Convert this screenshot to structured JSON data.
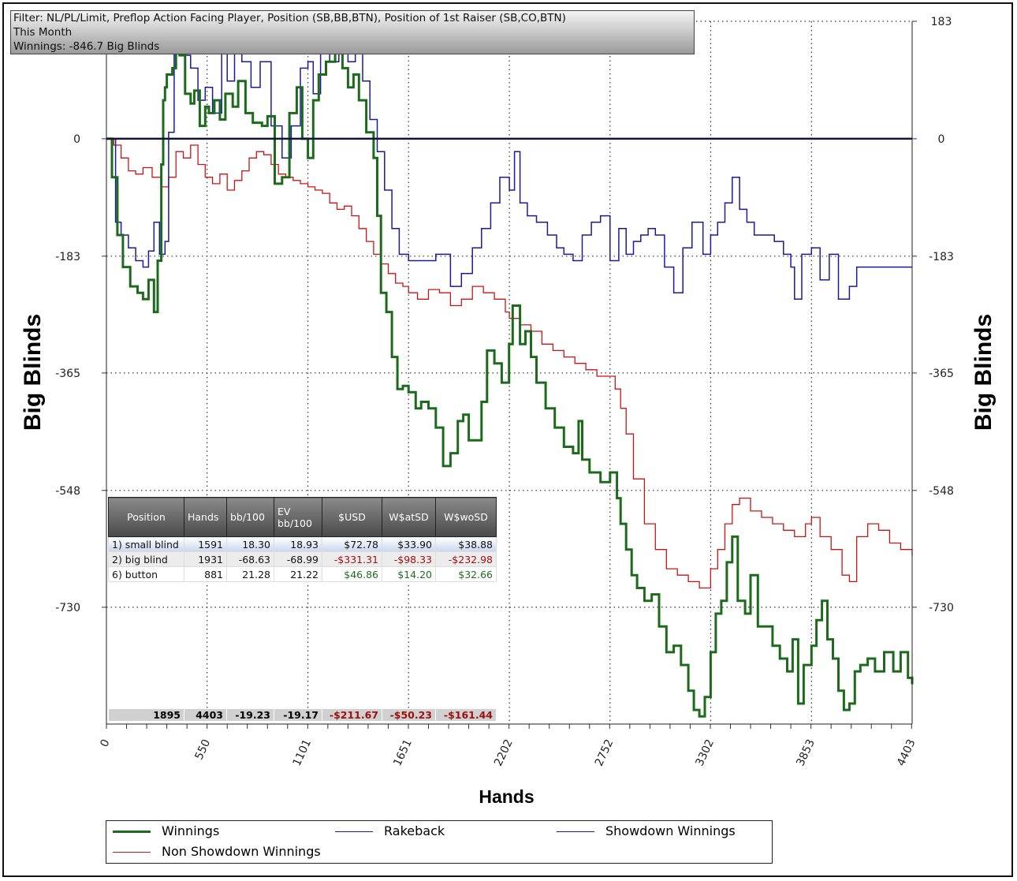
{
  "filter": {
    "line1": "Filter: NL/PL/Limit, Preflop Action Facing Player, Position (SB,BB,BTN), Position of 1st Raiser (SB,CO,BTN)",
    "line2": "This Month",
    "line3": "Winnings: -846.7 Big Blinds"
  },
  "chart_data": {
    "type": "line",
    "xlabel": "Hands",
    "ylabel": "Big Blinds",
    "ylabel_right": "Big Blinds",
    "xlim": [
      0,
      4403
    ],
    "ylim": [
      -912,
      183
    ],
    "x_ticks": [
      "0",
      "550",
      "1101",
      "1651",
      "2202",
      "2752",
      "3302",
      "3853",
      "4403"
    ],
    "x_tick_values": [
      0,
      550,
      1101,
      1651,
      2202,
      2752,
      3302,
      3853,
      4403
    ],
    "y_ticks": [
      "183",
      "0",
      "-183",
      "-365",
      "-548",
      "-730"
    ],
    "y_tick_values": [
      183,
      0,
      -183,
      -365,
      -548,
      -730
    ],
    "grid": true,
    "legend_position": "bottom",
    "series": [
      {
        "name": "Winnings",
        "color": "#1b6b1b",
        "x": [
          0,
          30,
          60,
          90,
          130,
          170,
          200,
          230,
          260,
          280,
          300,
          310,
          320,
          330,
          360,
          380,
          400,
          430,
          460,
          480,
          510,
          540,
          560,
          590,
          620,
          650,
          690,
          720,
          760,
          800,
          850,
          880,
          920,
          960,
          1000,
          1040,
          1070,
          1101,
          1130,
          1160,
          1200,
          1250,
          1290,
          1320,
          1350,
          1380,
          1420,
          1460,
          1480,
          1500,
          1530,
          1560,
          1590,
          1620,
          1651,
          1690,
          1720,
          1760,
          1800,
          1840,
          1880,
          1920,
          1950,
          1980,
          2010,
          2050,
          2080,
          2120,
          2160,
          2200,
          2220,
          2260,
          2290,
          2320,
          2350,
          2400,
          2450,
          2500,
          2550,
          2580,
          2600,
          2640,
          2700,
          2752,
          2790,
          2810,
          2840,
          2870,
          2900,
          2940,
          2980,
          3020,
          3060,
          3100,
          3140,
          3180,
          3210,
          3240,
          3270,
          3302,
          3330,
          3360,
          3390,
          3420,
          3450,
          3490,
          3520,
          3560,
          3600,
          3640,
          3680,
          3720,
          3750,
          3780,
          3810,
          3853,
          3880,
          3910,
          3940,
          3970,
          4000,
          4030,
          4060,
          4090,
          4120,
          4160,
          4200,
          4250,
          4300,
          4340,
          4380,
          4403
        ],
        "y": [
          0,
          -60,
          -150,
          -200,
          -230,
          -240,
          -250,
          -220,
          -270,
          -190,
          -40,
          60,
          80,
          100,
          110,
          140,
          130,
          70,
          55,
          75,
          20,
          50,
          40,
          60,
          30,
          70,
          50,
          90,
          40,
          25,
          20,
          35,
          -70,
          -60,
          40,
          80,
          0,
          -30,
          60,
          100,
          120,
          140,
          110,
          80,
          100,
          60,
          10,
          -30,
          -120,
          -240,
          -270,
          -340,
          -390,
          -385,
          -395,
          -420,
          -410,
          -420,
          -450,
          -510,
          -490,
          -440,
          -430,
          -470,
          -470,
          -410,
          -330,
          -350,
          -380,
          -320,
          -260,
          -320,
          -300,
          -340,
          -380,
          -420,
          -450,
          -480,
          -490,
          -440,
          -500,
          -520,
          -535,
          -520,
          -560,
          -600,
          -640,
          -680,
          -700,
          -720,
          -710,
          -760,
          -800,
          -790,
          -820,
          -860,
          -890,
          -900,
          -870,
          -800,
          -740,
          -720,
          -660,
          -620,
          -720,
          -740,
          -680,
          -760,
          -760,
          -790,
          -810,
          -830,
          -780,
          -880,
          -820,
          -790,
          -750,
          -720,
          -780,
          -810,
          -860,
          -890,
          -880,
          -830,
          -820,
          -810,
          -830,
          -800,
          -830,
          -800,
          -840,
          -850
        ]
      },
      {
        "name": "Rakeback",
        "color": "#1a1a9c",
        "x": [
          0,
          4403
        ],
        "y": [
          0,
          0
        ]
      },
      {
        "name": "Showdown Winnings",
        "color": "#1a1a9c",
        "x": [
          0,
          50,
          80,
          120,
          160,
          200,
          230,
          260,
          290,
          320,
          340,
          370,
          400,
          430,
          460,
          500,
          540,
          580,
          630,
          660,
          700,
          740,
          790,
          840,
          900,
          960,
          1010,
          1060,
          1101,
          1130,
          1170,
          1220,
          1270,
          1320,
          1360,
          1400,
          1440,
          1480,
          1520,
          1560,
          1600,
          1651,
          1720,
          1800,
          1880,
          1940,
          2000,
          2050,
          2100,
          2150,
          2202,
          2230,
          2260,
          2300,
          2350,
          2410,
          2460,
          2500,
          2550,
          2600,
          2650,
          2700,
          2752,
          2800,
          2840,
          2880,
          2920,
          2960,
          3000,
          3050,
          3100,
          3150,
          3200,
          3260,
          3302,
          3340,
          3380,
          3420,
          3460,
          3500,
          3540,
          3600,
          3650,
          3700,
          3740,
          3760,
          3800,
          3853,
          3900,
          3950,
          4000,
          4060,
          4100,
          4160,
          4220,
          4300,
          4360,
          4403
        ],
        "y": [
          0,
          -130,
          -150,
          -170,
          -190,
          -200,
          -175,
          -130,
          -180,
          -160,
          10,
          160,
          150,
          130,
          110,
          60,
          80,
          40,
          140,
          90,
          140,
          120,
          80,
          120,
          20,
          -30,
          20,
          110,
          120,
          70,
          150,
          120,
          180,
          120,
          160,
          90,
          30,
          -20,
          -80,
          -140,
          -180,
          -190,
          -190,
          -180,
          -230,
          -210,
          -170,
          -140,
          -100,
          -60,
          -80,
          -20,
          -100,
          -120,
          -130,
          -150,
          -170,
          -180,
          -190,
          -150,
          -130,
          -120,
          -190,
          -140,
          -180,
          -160,
          -150,
          -140,
          -150,
          -200,
          -240,
          -170,
          -130,
          -180,
          -150,
          -130,
          -100,
          -60,
          -110,
          -130,
          -150,
          -150,
          -160,
          -180,
          -200,
          -250,
          -180,
          -170,
          -220,
          -180,
          -250,
          -230,
          -200,
          -200,
          -200,
          -200,
          -200,
          -200
        ]
      },
      {
        "name": "Non Showdown Winnings",
        "color": "#c81414",
        "x": [
          0,
          40,
          80,
          120,
          160,
          200,
          250,
          300,
          340,
          380,
          420,
          460,
          500,
          540,
          580,
          620,
          660,
          700,
          740,
          780,
          820,
          860,
          900,
          940,
          980,
          1020,
          1060,
          1101,
          1140,
          1180,
          1220,
          1260,
          1300,
          1340,
          1380,
          1420,
          1460,
          1500,
          1540,
          1580,
          1620,
          1651,
          1700,
          1760,
          1820,
          1880,
          1940,
          2000,
          2060,
          2120,
          2180,
          2202,
          2260,
          2320,
          2380,
          2440,
          2500,
          2560,
          2620,
          2680,
          2752,
          2780,
          2810,
          2840,
          2880,
          2940,
          3000,
          3060,
          3120,
          3180,
          3240,
          3302,
          3340,
          3380,
          3420,
          3460,
          3520,
          3580,
          3640,
          3700,
          3760,
          3820,
          3853,
          3900,
          3960,
          4020,
          4060,
          4100,
          4160,
          4220,
          4280,
          4340,
          4403
        ],
        "y": [
          0,
          -10,
          -30,
          -50,
          -55,
          -45,
          -60,
          -75,
          -60,
          -20,
          -30,
          -10,
          -40,
          -60,
          -70,
          -55,
          -80,
          -65,
          -50,
          -30,
          -20,
          -25,
          -40,
          -55,
          -60,
          -65,
          -70,
          -75,
          -80,
          -85,
          -100,
          -110,
          -105,
          -120,
          -140,
          -160,
          -180,
          -195,
          -210,
          -225,
          -230,
          -240,
          -250,
          -235,
          -240,
          -260,
          -250,
          -230,
          -240,
          -250,
          -270,
          -280,
          -290,
          -300,
          -320,
          -330,
          -340,
          -350,
          -360,
          -370,
          -370,
          -390,
          -420,
          -460,
          -530,
          -600,
          -640,
          -670,
          -680,
          -690,
          -700,
          -670,
          -640,
          -600,
          -570,
          -560,
          -580,
          -590,
          -600,
          -610,
          -620,
          -600,
          -590,
          -620,
          -640,
          -680,
          -690,
          -620,
          -600,
          -610,
          -630,
          -640,
          -650
        ]
      }
    ]
  },
  "table": {
    "headers": [
      "Position",
      "Hands",
      "bb/100",
      "EV\nbb/100",
      "$USD",
      "W$atSD",
      "W$woSD"
    ],
    "rows": [
      [
        "1) small blind",
        "1591",
        "18.30",
        "18.93",
        "$72.78",
        "$33.90",
        "$38.88"
      ],
      [
        "2) big blind",
        "1931",
        "-68.63",
        "-68.99",
        "-$331.31",
        "-$98.33",
        "-$232.98"
      ],
      [
        "6) button",
        "881",
        "21.28",
        "21.22",
        "$46.86",
        "$14.20",
        "$32.66"
      ]
    ],
    "totals": [
      "1895",
      "4403",
      "-19.23",
      "-19.17",
      "-$211.67",
      "-$50.23",
      "-$161.44"
    ]
  }
}
